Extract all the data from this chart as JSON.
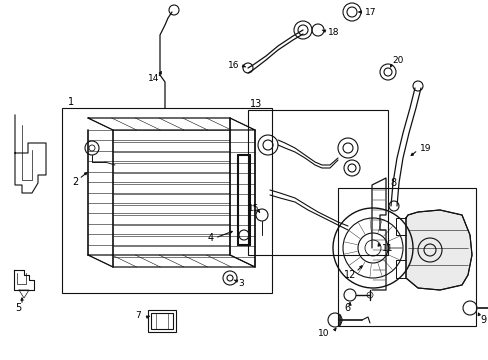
{
  "bg_color": "#ffffff",
  "lc": "#111111",
  "lw": 0.8,
  "fig_w": 4.89,
  "fig_h": 3.6,
  "dpi": 100
}
